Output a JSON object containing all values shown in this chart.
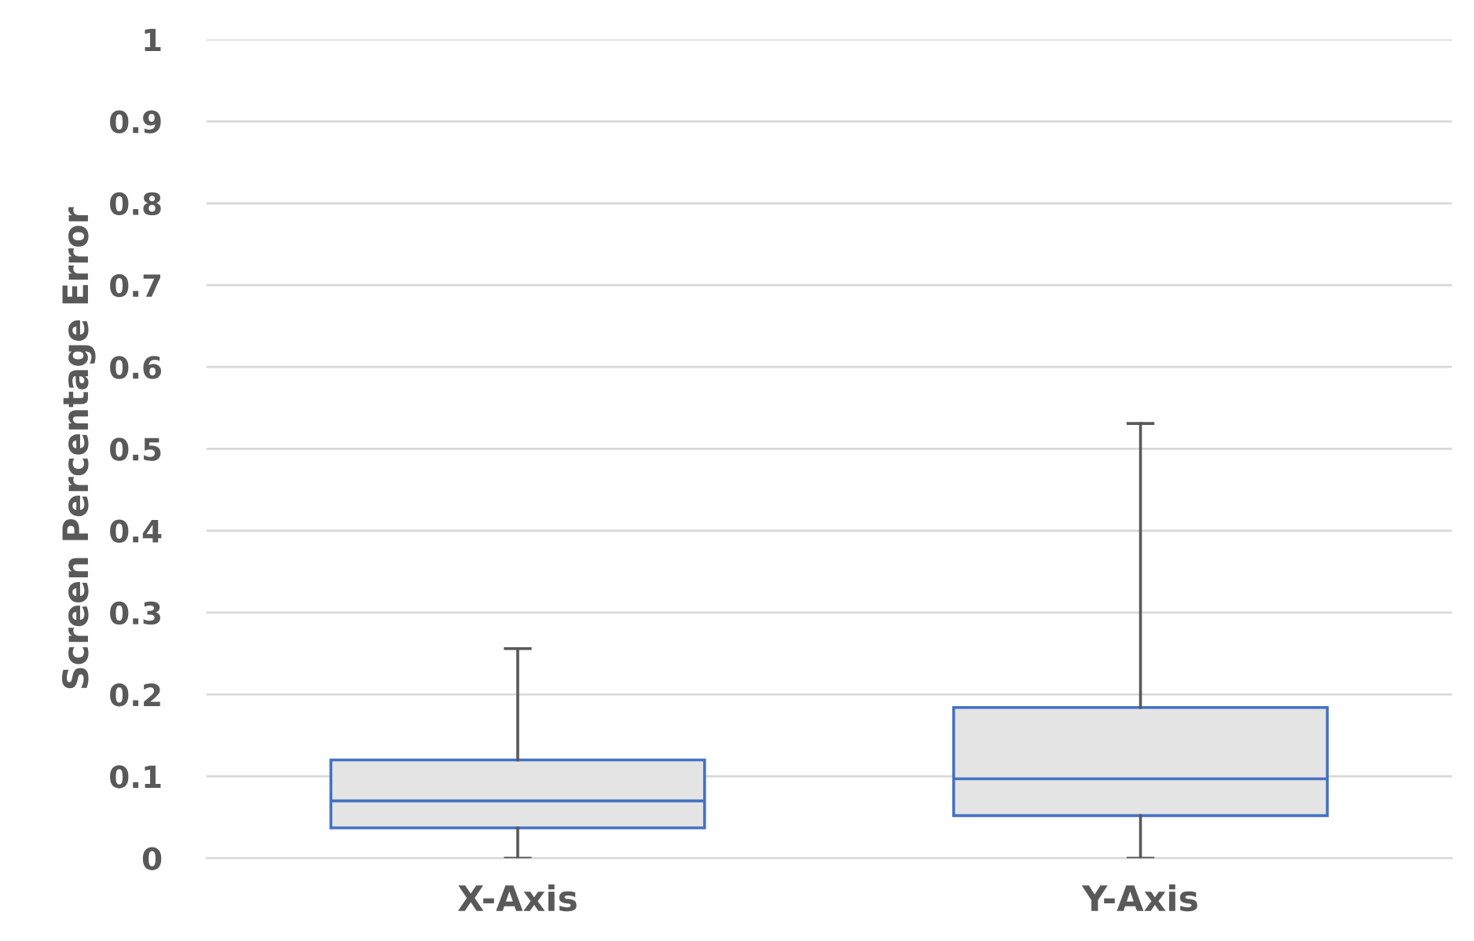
{
  "chart_data": {
    "type": "box",
    "ylabel": "Screen Percentage Error",
    "categories": [
      "X-Axis",
      "Y-Axis"
    ],
    "boxes": [
      {
        "low": 0,
        "q1": 0.037,
        "median": 0.07,
        "q3": 0.12,
        "high": 0.256
      },
      {
        "low": 0,
        "q1": 0.052,
        "median": 0.097,
        "q3": 0.184,
        "high": 0.531
      }
    ],
    "color": "#e4e4e4",
    "ylim": [
      0,
      1
    ],
    "yticks": [
      0,
      0.1,
      0.2,
      0.3,
      0.4,
      0.5,
      0.6,
      0.7,
      0.8,
      0.9,
      1
    ],
    "grid": "y",
    "legend": false
  }
}
